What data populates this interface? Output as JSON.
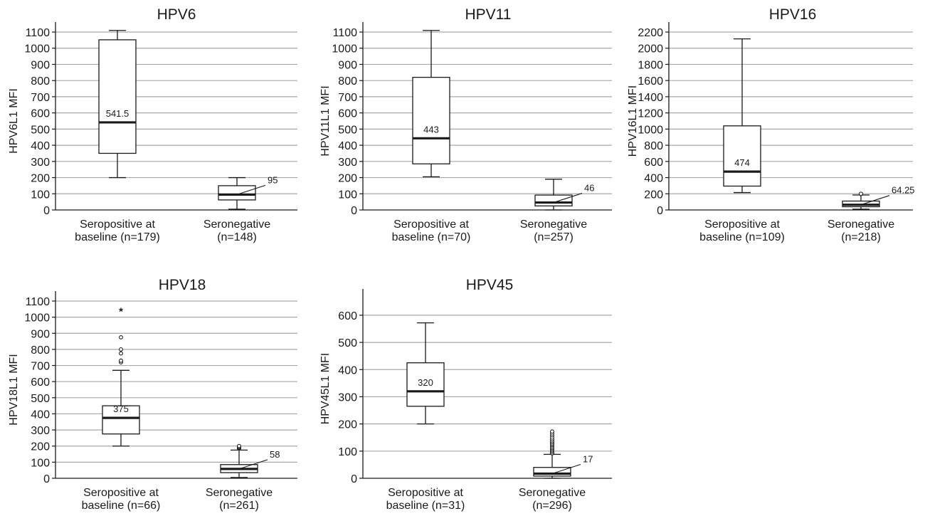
{
  "colors": {
    "grid": "#a8a8a8",
    "ink": "#1a1a1a",
    "box_fill": "#ffffff"
  },
  "chart_data": [
    {
      "type": "box",
      "title": "HPV6",
      "ylabel": "HPV6L1 MFI",
      "ylim": [
        0,
        1100
      ],
      "yticks": [
        0,
        100,
        200,
        300,
        400,
        500,
        600,
        700,
        800,
        900,
        1000,
        1100
      ],
      "groups": [
        {
          "label_lines": [
            "Seropositive at",
            "baseline (n=179)"
          ],
          "whisker_low": 200,
          "q1": 350,
          "median": 541.5,
          "q3": 1052,
          "whisker_high": 1110,
          "median_label": "541.5",
          "outliers": []
        },
        {
          "label_lines": [
            "Seronegative",
            "(n=148)"
          ],
          "whisker_low": 5,
          "q1": 62,
          "median": 95,
          "q3": 150,
          "whisker_high": 200,
          "median_label": "95",
          "outliers": []
        }
      ]
    },
    {
      "type": "box",
      "title": "HPV11",
      "ylabel": "HPV11L1 MFI",
      "ylim": [
        0,
        1100
      ],
      "yticks": [
        0,
        100,
        200,
        300,
        400,
        500,
        600,
        700,
        800,
        900,
        1000,
        1100
      ],
      "groups": [
        {
          "label_lines": [
            "Seropositive at",
            "baseline (n=70)"
          ],
          "whisker_low": 205,
          "q1": 285,
          "median": 443,
          "q3": 820,
          "whisker_high": 1110,
          "median_label": "443",
          "outliers": []
        },
        {
          "label_lines": [
            "Seronegative",
            "(n=257)"
          ],
          "whisker_low": 0,
          "q1": 25,
          "median": 46,
          "q3": 92,
          "whisker_high": 190,
          "median_label": "46",
          "outliers": []
        }
      ]
    },
    {
      "type": "box",
      "title": "HPV16",
      "ylabel": "HPV16L1 MFI",
      "ylim": [
        0,
        2200
      ],
      "yticks": [
        0,
        200,
        400,
        600,
        800,
        1000,
        1200,
        1400,
        1600,
        1800,
        2000,
        2200
      ],
      "groups": [
        {
          "label_lines": [
            "Seropositive at",
            "baseline (n=109)"
          ],
          "whisker_low": 215,
          "q1": 295,
          "median": 474,
          "q3": 1040,
          "whisker_high": 2115,
          "median_label": "474",
          "outliers": []
        },
        {
          "label_lines": [
            "Seronegative",
            "(n=218)"
          ],
          "whisker_low": 10,
          "q1": 40,
          "median": 64.25,
          "q3": 110,
          "whisker_high": 185,
          "median_label": "64.25",
          "outliers": [
            {
              "value": 200,
              "marker": "circle"
            }
          ]
        }
      ]
    },
    {
      "type": "box",
      "title": "HPV18",
      "ylabel": "HPV18L1 MFI",
      "ylim": [
        0,
        1100
      ],
      "yticks": [
        0,
        100,
        200,
        300,
        400,
        500,
        600,
        700,
        800,
        900,
        1000,
        1100
      ],
      "groups": [
        {
          "label_lines": [
            "Seropositive at",
            "baseline (n=66)"
          ],
          "whisker_low": 200,
          "q1": 275,
          "median": 375,
          "q3": 450,
          "whisker_high": 670,
          "median_label": "375",
          "outliers": [
            {
              "value": 720,
              "marker": "circle"
            },
            {
              "value": 730,
              "marker": "circle"
            },
            {
              "value": 775,
              "marker": "circle"
            },
            {
              "value": 800,
              "marker": "circle"
            },
            {
              "value": 875,
              "marker": "circle"
            },
            {
              "value": 1045,
              "marker": "star"
            }
          ]
        },
        {
          "label_lines": [
            "Seronegative",
            "(n=261)"
          ],
          "whisker_low": 5,
          "q1": 35,
          "median": 58,
          "q3": 85,
          "whisker_high": 175,
          "median_label": "58",
          "outliers": [
            {
              "value": 185,
              "marker": "circle"
            },
            {
              "value": 190,
              "marker": "circle"
            },
            {
              "value": 195,
              "marker": "circle"
            },
            {
              "value": 200,
              "marker": "circle"
            }
          ]
        }
      ]
    },
    {
      "type": "box",
      "title": "HPV45",
      "ylabel": "HPV45L1 MFI",
      "ylim": [
        0,
        660
      ],
      "yticks": [
        0,
        100,
        200,
        300,
        400,
        500,
        600
      ],
      "groups": [
        {
          "label_lines": [
            "Seropositive at",
            "baseline (n=31)"
          ],
          "whisker_low": 200,
          "q1": 265,
          "median": 320,
          "q3": 425,
          "whisker_high": 572,
          "median_label": "320",
          "outliers": []
        },
        {
          "label_lines": [
            "Seronegative",
            "(n=296)"
          ],
          "whisker_low": 0,
          "q1": 8,
          "median": 17,
          "q3": 40,
          "whisker_high": 88,
          "median_label": "17",
          "outliers": [
            {
              "value": 92,
              "marker": "circle"
            },
            {
              "value": 97,
              "marker": "circle"
            },
            {
              "value": 102,
              "marker": "circle"
            },
            {
              "value": 107,
              "marker": "circle"
            },
            {
              "value": 112,
              "marker": "circle"
            },
            {
              "value": 117,
              "marker": "circle"
            },
            {
              "value": 122,
              "marker": "circle"
            },
            {
              "value": 127,
              "marker": "circle"
            },
            {
              "value": 132,
              "marker": "circle"
            },
            {
              "value": 137,
              "marker": "circle"
            },
            {
              "value": 143,
              "marker": "circle"
            },
            {
              "value": 150,
              "marker": "circle"
            },
            {
              "value": 158,
              "marker": "circle"
            },
            {
              "value": 165,
              "marker": "circle"
            },
            {
              "value": 172,
              "marker": "circle"
            }
          ]
        }
      ]
    }
  ]
}
